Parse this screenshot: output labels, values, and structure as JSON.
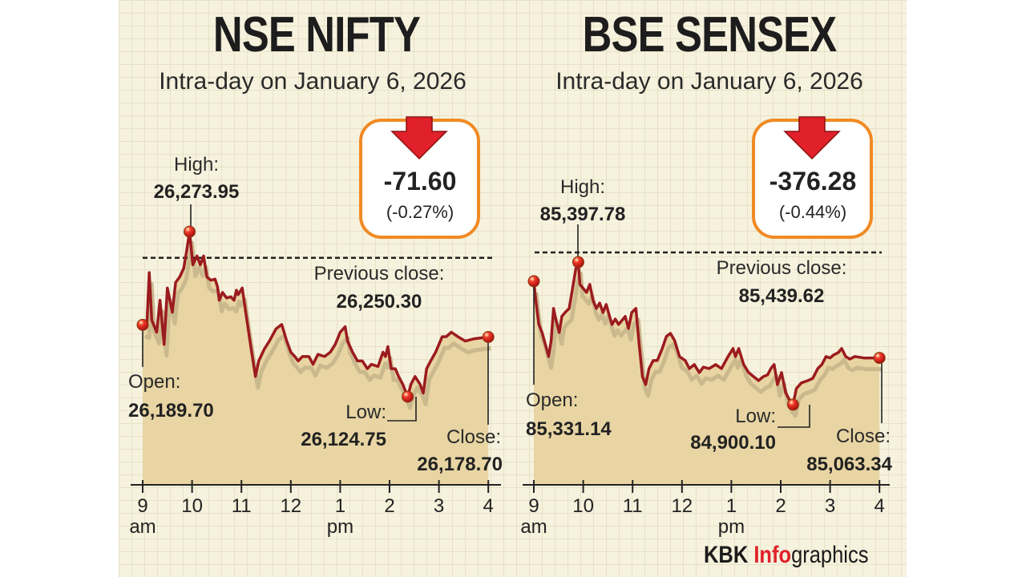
{
  "chart_data": [
    {
      "type": "area",
      "title": "NSE NIFTY",
      "subtitle": "Intra-day on January 6, 2026",
      "x_ticks": [
        "9",
        "10",
        "11",
        "12",
        "1",
        "2",
        "3",
        "4"
      ],
      "x_tick_sub": {
        "am": "am",
        "pm": "pm"
      },
      "ylim": [
        26045,
        26274
      ],
      "previous_close": {
        "label": "Previous close:",
        "value": 26250.3,
        "text": "26,250.30"
      },
      "open": {
        "label": "Open:",
        "value": 26189.7,
        "text": "26,189.70"
      },
      "high": {
        "label": "High:",
        "value": 26273.95,
        "text": "26,273.95"
      },
      "low": {
        "label": "Low:",
        "value": 26124.75,
        "text": "26,124.75"
      },
      "close": {
        "label": "Close:",
        "value": 26178.7,
        "text": "26,178.70"
      },
      "change": {
        "points": "-71.60",
        "percent": "(-0.27%)",
        "direction": "down"
      },
      "colors": {
        "line": "#9b1b1f",
        "area": "#e8d5a3",
        "shadow": "#cbb98e",
        "box": "#f08a24",
        "arrow": "#e0202a"
      },
      "series": [
        [
          "09:00",
          26189.7
        ],
        [
          "09:05",
          26188
        ],
        [
          "09:08",
          26237
        ],
        [
          "09:11",
          26194
        ],
        [
          "09:17",
          26183
        ],
        [
          "09:21",
          26212
        ],
        [
          "09:26",
          26172
        ],
        [
          "09:30",
          26223
        ],
        [
          "09:36",
          26201
        ],
        [
          "09:40",
          26228
        ],
        [
          "09:45",
          26233
        ],
        [
          "09:50",
          26241
        ],
        [
          "09:54",
          26259
        ],
        [
          "09:57",
          26273.95
        ],
        [
          "10:01",
          26244
        ],
        [
          "10:06",
          26252
        ],
        [
          "10:10",
          26244
        ],
        [
          "10:14",
          26252
        ],
        [
          "10:18",
          26233
        ],
        [
          "10:23",
          26230
        ],
        [
          "10:28",
          26231
        ],
        [
          "10:31",
          26224
        ],
        [
          "10:33",
          26212
        ],
        [
          "10:37",
          26219
        ],
        [
          "10:42",
          26214
        ],
        [
          "10:47",
          26215
        ],
        [
          "10:51",
          26212
        ],
        [
          "10:54",
          26221
        ],
        [
          "10:56",
          26217
        ],
        [
          "11:01",
          26223
        ],
        [
          "11:06",
          26197
        ],
        [
          "11:11",
          26172
        ],
        [
          "11:17",
          26143
        ],
        [
          "11:21",
          26157
        ],
        [
          "11:28",
          26168
        ],
        [
          "11:34",
          26175
        ],
        [
          "11:42",
          26186
        ],
        [
          "11:49",
          26190
        ],
        [
          "11:55",
          26175
        ],
        [
          "12:00",
          26165
        ],
        [
          "12:05",
          26161
        ],
        [
          "12:09",
          26157
        ],
        [
          "12:14",
          26161
        ],
        [
          "12:22",
          26161
        ],
        [
          "12:27",
          26154
        ],
        [
          "12:33",
          26163
        ],
        [
          "12:41",
          26161
        ],
        [
          "12:48",
          26165
        ],
        [
          "12:54",
          26172
        ],
        [
          "13:00",
          26183
        ],
        [
          "13:06",
          26188
        ],
        [
          "13:09",
          26175
        ],
        [
          "13:15",
          26165
        ],
        [
          "13:21",
          26157
        ],
        [
          "13:27",
          26157
        ],
        [
          "13:33",
          26150
        ],
        [
          "13:38",
          26154
        ],
        [
          "13:46",
          26152
        ],
        [
          "13:52",
          26165
        ],
        [
          "13:55",
          26161
        ],
        [
          "13:58",
          26170
        ],
        [
          "14:02",
          26150
        ],
        [
          "14:07",
          26150
        ],
        [
          "14:11",
          26143
        ],
        [
          "14:16",
          26136
        ],
        [
          "14:22",
          26124.75
        ],
        [
          "14:26",
          26136
        ],
        [
          "14:31",
          26143
        ],
        [
          "14:37",
          26136
        ],
        [
          "14:41",
          26128
        ],
        [
          "14:45",
          26150
        ],
        [
          "14:50",
          26157
        ],
        [
          "14:56",
          26165
        ],
        [
          "15:04",
          26179
        ],
        [
          "15:09",
          26179
        ],
        [
          "15:15",
          26183
        ],
        [
          "15:23",
          26179
        ],
        [
          "15:32",
          26175
        ],
        [
          "15:42",
          26177
        ],
        [
          "16:00",
          26178.7
        ]
      ]
    },
    {
      "type": "area",
      "title": "BSE SENSEX",
      "subtitle": "Intra-day on January 6, 2026",
      "x_ticks": [
        "9",
        "10",
        "11",
        "12",
        "1",
        "2",
        "3",
        "4"
      ],
      "x_tick_sub": {
        "am": "am",
        "pm": "pm"
      },
      "ylim": [
        84620,
        85398
      ],
      "previous_close": {
        "label": "Previous close:",
        "value": 85439.62,
        "text": "85,439.62"
      },
      "open": {
        "label": "Open:",
        "value": 85331.14,
        "text": "85,331.14"
      },
      "high": {
        "label": "High:",
        "value": 85397.78,
        "text": "85,397.78"
      },
      "low": {
        "label": "Low:",
        "value": 84900.1,
        "text": "84,900.10"
      },
      "close": {
        "label": "Close:",
        "value": 85063.34,
        "text": "85,063.34"
      },
      "change": {
        "points": "-376.28",
        "percent": "(-0.44%)",
        "direction": "down"
      },
      "colors": {
        "line": "#9b1b1f",
        "area": "#e8d5a3",
        "shadow": "#cbb98e",
        "box": "#f08a24",
        "arrow": "#e0202a"
      },
      "series": [
        [
          "09:00",
          85331.14
        ],
        [
          "09:02",
          85272
        ],
        [
          "09:06",
          85180
        ],
        [
          "09:10",
          85152
        ],
        [
          "09:14",
          85110
        ],
        [
          "09:18",
          85068
        ],
        [
          "09:21",
          85124
        ],
        [
          "09:24",
          85236
        ],
        [
          "09:27",
          85194
        ],
        [
          "09:31",
          85152
        ],
        [
          "09:34",
          85208
        ],
        [
          "09:38",
          85222
        ],
        [
          "09:43",
          85236
        ],
        [
          "09:47",
          85306
        ],
        [
          "09:51",
          85375
        ],
        [
          "09:54",
          85397.78
        ],
        [
          "09:56",
          85320
        ],
        [
          "10:00",
          85306
        ],
        [
          "10:04",
          85292
        ],
        [
          "10:08",
          85320
        ],
        [
          "10:12",
          85264
        ],
        [
          "10:16",
          85236
        ],
        [
          "10:20",
          85255
        ],
        [
          "10:24",
          85222
        ],
        [
          "10:28",
          85250
        ],
        [
          "10:32",
          85208
        ],
        [
          "10:35",
          85180
        ],
        [
          "10:39",
          85199
        ],
        [
          "10:43",
          85180
        ],
        [
          "10:47",
          85194
        ],
        [
          "10:51",
          85208
        ],
        [
          "10:55",
          85166
        ],
        [
          "10:59",
          85222
        ],
        [
          "11:04",
          85236
        ],
        [
          "11:08",
          85110
        ],
        [
          "11:12",
          84998
        ],
        [
          "11:16",
          84970
        ],
        [
          "11:20",
          85026
        ],
        [
          "11:25",
          85054
        ],
        [
          "11:30",
          85054
        ],
        [
          "11:36",
          85096
        ],
        [
          "11:41",
          85138
        ],
        [
          "11:46",
          85149
        ],
        [
          "11:51",
          85124
        ],
        [
          "11:57",
          85068
        ],
        [
          "12:04",
          85054
        ],
        [
          "12:09",
          85026
        ],
        [
          "12:15",
          85040
        ],
        [
          "12:21",
          85012
        ],
        [
          "12:26",
          85031
        ],
        [
          "12:33",
          85026
        ],
        [
          "12:41",
          85040
        ],
        [
          "12:48",
          85026
        ],
        [
          "12:56",
          85068
        ],
        [
          "13:02",
          85096
        ],
        [
          "13:05",
          85068
        ],
        [
          "13:09",
          85096
        ],
        [
          "13:15",
          85040
        ],
        [
          "13:21",
          85012
        ],
        [
          "13:27",
          84998
        ],
        [
          "13:33",
          84984
        ],
        [
          "13:39",
          84998
        ],
        [
          "13:44",
          85004
        ],
        [
          "13:48",
          85026
        ],
        [
          "13:52",
          85040
        ],
        [
          "13:56",
          84970
        ],
        [
          "14:01",
          85012
        ],
        [
          "14:06",
          84942
        ],
        [
          "14:11",
          84914
        ],
        [
          "14:15",
          84900.1
        ],
        [
          "14:19",
          84956
        ],
        [
          "14:25",
          84976
        ],
        [
          "14:33",
          84984
        ],
        [
          "14:39",
          84992
        ],
        [
          "14:45",
          85026
        ],
        [
          "14:50",
          85040
        ],
        [
          "14:55",
          85068
        ],
        [
          "15:00",
          85063
        ],
        [
          "15:04",
          85073
        ],
        [
          "15:10",
          85082
        ],
        [
          "15:14",
          85096
        ],
        [
          "15:19",
          85068
        ],
        [
          "15:24",
          85059
        ],
        [
          "15:30",
          85068
        ],
        [
          "15:41",
          85063
        ],
        [
          "16:00",
          85063.34
        ]
      ]
    }
  ],
  "branding": {
    "kbk": "KBK",
    "info": "Info",
    "graphics": "graphics"
  }
}
